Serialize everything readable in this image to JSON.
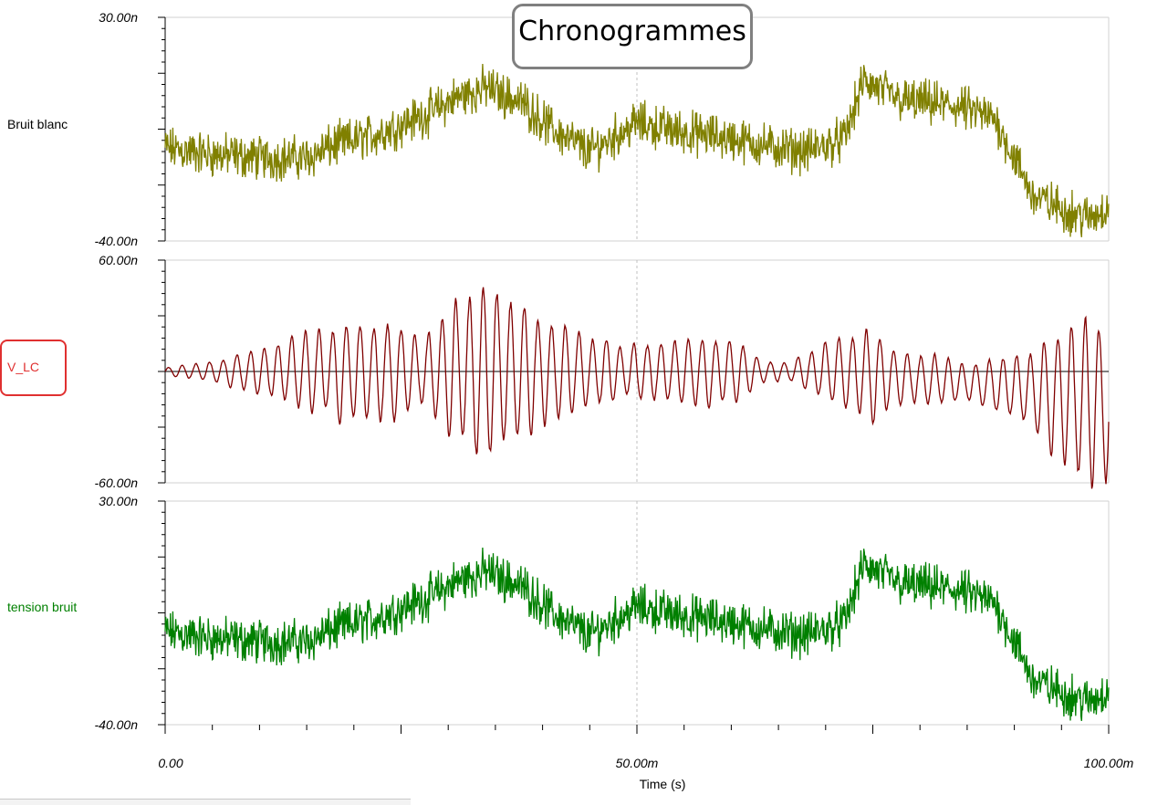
{
  "title": "Chronogrammes",
  "colors": {
    "bruit_blanc": "#808000",
    "v_lc": "#800000",
    "tension_bruit": "#008000",
    "axis": "#000000",
    "grid": "#c0c0c0",
    "title_border": "#808080",
    "highlight_border": "#e03030"
  },
  "chart_data": [
    {
      "type": "line",
      "channel": "Bruit blanc",
      "ylim": [
        -40,
        30
      ],
      "y_unit": "n",
      "y_ticks": [
        "30.00n",
        "-40.00n"
      ],
      "x_range": [
        0,
        100
      ],
      "x_unit": "ms",
      "series": [
        {
          "name": "Bruit blanc",
          "trend": [
            [
              0,
              -11
            ],
            [
              5,
              -13
            ],
            [
              10,
              -14
            ],
            [
              15,
              -14
            ],
            [
              18,
              -10
            ],
            [
              22,
              -7
            ],
            [
              28,
              0
            ],
            [
              31,
              5
            ],
            [
              34,
              8
            ],
            [
              38,
              3
            ],
            [
              41,
              -5
            ],
            [
              45,
              -12
            ],
            [
              50,
              -3
            ],
            [
              55,
              -6
            ],
            [
              60,
              -8
            ],
            [
              65,
              -11
            ],
            [
              68,
              -12
            ],
            [
              72,
              -8
            ],
            [
              74,
              10
            ],
            [
              78,
              4
            ],
            [
              84,
              2
            ],
            [
              88,
              -2
            ],
            [
              92,
              -26
            ],
            [
              95,
              -30
            ],
            [
              98,
              -33
            ],
            [
              100,
              -29
            ]
          ],
          "noise_amplitude": 5
        }
      ]
    },
    {
      "type": "line",
      "channel": "V_LC",
      "ylim": [
        -60,
        60
      ],
      "y_unit": "n",
      "y_ticks": [
        "60.00n",
        "-60.00n"
      ],
      "x_range": [
        0,
        100
      ],
      "x_unit": "ms",
      "series": [
        {
          "name": "V_LC",
          "oscillation_period_ms": 1.45,
          "envelope": [
            [
              0,
              2
            ],
            [
              5,
              5
            ],
            [
              10,
              12
            ],
            [
              15,
              20
            ],
            [
              20,
              25
            ],
            [
              25,
              25
            ],
            [
              27,
              15
            ],
            [
              30,
              32
            ],
            [
              35,
              45
            ],
            [
              40,
              28
            ],
            [
              45,
              20
            ],
            [
              50,
              14
            ],
            [
              55,
              16
            ],
            [
              60,
              18
            ],
            [
              63,
              6
            ],
            [
              66,
              5
            ],
            [
              70,
              14
            ],
            [
              73,
              20
            ],
            [
              75,
              25
            ],
            [
              77,
              16
            ],
            [
              80,
              14
            ],
            [
              85,
              10
            ],
            [
              88,
              14
            ],
            [
              92,
              20
            ],
            [
              96,
              38
            ],
            [
              100,
              42
            ]
          ],
          "offset": [
            [
              0,
              0
            ],
            [
              70,
              0
            ],
            [
              90,
              -8
            ],
            [
              100,
              -18
            ]
          ]
        }
      ]
    },
    {
      "type": "line",
      "channel": "tension bruit",
      "ylim": [
        -40,
        30
      ],
      "y_unit": "n",
      "y_ticks": [
        "30.00n",
        "-40.00n"
      ],
      "x_range": [
        0,
        100
      ],
      "x_unit": "ms",
      "series": [
        {
          "name": "tension bruit",
          "trend": [
            [
              0,
              -11
            ],
            [
              5,
              -13
            ],
            [
              10,
              -14
            ],
            [
              15,
              -14
            ],
            [
              18,
              -10
            ],
            [
              22,
              -7
            ],
            [
              28,
              0
            ],
            [
              31,
              5
            ],
            [
              34,
              8
            ],
            [
              38,
              3
            ],
            [
              41,
              -5
            ],
            [
              45,
              -12
            ],
            [
              50,
              -3
            ],
            [
              55,
              -6
            ],
            [
              60,
              -8
            ],
            [
              65,
              -11
            ],
            [
              68,
              -12
            ],
            [
              72,
              -8
            ],
            [
              74,
              10
            ],
            [
              78,
              4
            ],
            [
              84,
              2
            ],
            [
              88,
              -2
            ],
            [
              92,
              -26
            ],
            [
              95,
              -30
            ],
            [
              98,
              -33
            ],
            [
              100,
              -29
            ]
          ],
          "noise_amplitude": 5
        }
      ]
    }
  ],
  "x_axis": {
    "label": "Time (s)",
    "tick_labels": [
      "0.00",
      "50.00m",
      "100.00m"
    ]
  }
}
